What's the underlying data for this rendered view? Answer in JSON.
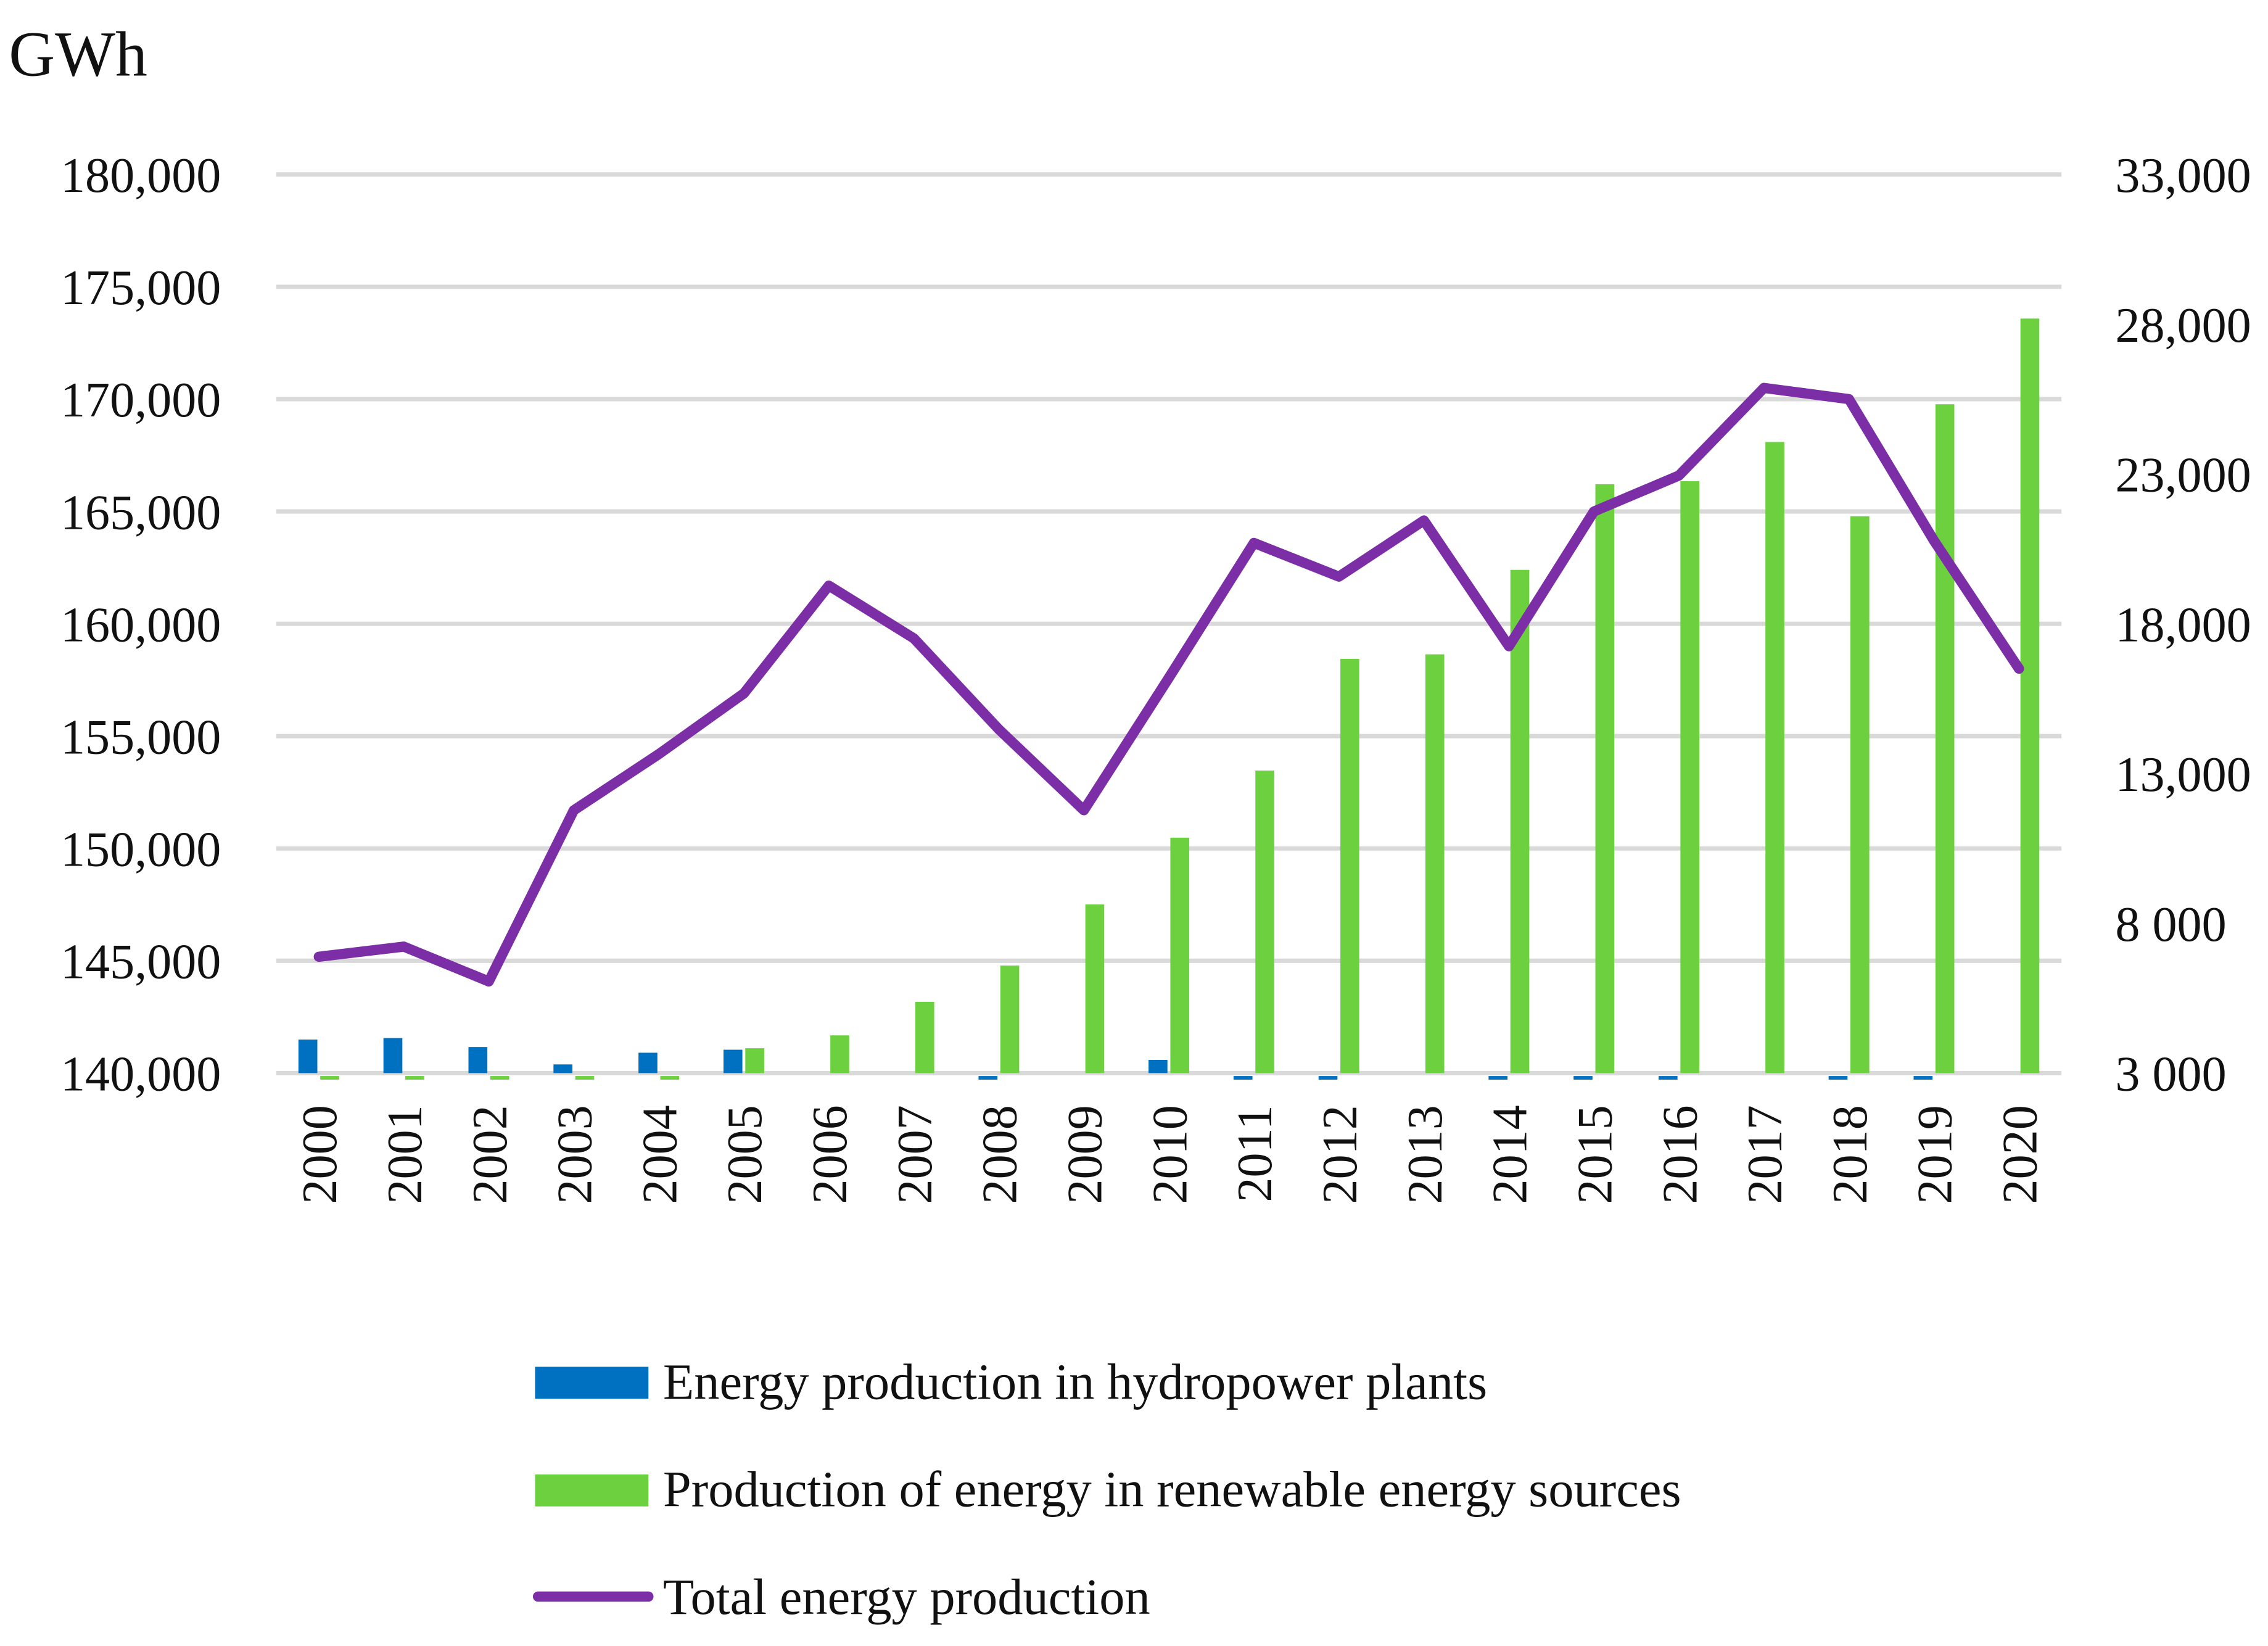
{
  "chart_data": {
    "type": "bar+line",
    "unit_label": "GWh",
    "categories": [
      "2000",
      "2001",
      "2002",
      "2003",
      "2004",
      "2005",
      "2006",
      "2007",
      "2008",
      "2009",
      "2010",
      "2011",
      "2012",
      "2013",
      "2014",
      "2015",
      "2016",
      "2017",
      "2018",
      "2019",
      "2020"
    ],
    "left_axis": {
      "min": 140000,
      "max": 180000,
      "step": 5000,
      "tick_labels": [
        "140,000",
        "145,000",
        "150,000",
        "155,000",
        "160,000",
        "165,000",
        "170,000",
        "175,000",
        "180,000"
      ]
    },
    "right_axis": {
      "min": 3000,
      "max": 33000,
      "step": 5000,
      "tick_labels": [
        "3 000",
        "8 000",
        "13,000",
        "18,000",
        "23,000",
        "28,000",
        "33,000"
      ]
    },
    "grid": true,
    "legend_position": "bottom",
    "series": [
      {
        "name": "Energy production in hydropower plants",
        "type": "bar",
        "axis": "right",
        "color": "#0070c0",
        "values": [
          4120,
          4170,
          3870,
          3290,
          3680,
          3780,
          3000,
          3000,
          2900,
          3000,
          3440,
          2900,
          2900,
          3000,
          2900,
          2900,
          2900,
          3000,
          2900,
          2900,
          3000
        ]
      },
      {
        "name": "Production of energy in renewable energy sources",
        "type": "bar",
        "axis": "right",
        "color": "#6dd13f",
        "values": [
          2900,
          2900,
          2900,
          2900,
          2900,
          3830,
          4260,
          5380,
          6590,
          8630,
          10860,
          13100,
          16830,
          16980,
          19800,
          22660,
          22760,
          24070,
          21590,
          25330,
          28190
        ]
      },
      {
        "name": "Total energy production",
        "type": "line",
        "axis": "left",
        "color": "#7b2ea5",
        "values": [
          145180,
          145630,
          144080,
          151700,
          154200,
          156900,
          161700,
          159350,
          155300,
          151700,
          157600,
          163600,
          162100,
          164600,
          159000,
          165000,
          166600,
          170500,
          170000,
          163700,
          158000
        ]
      }
    ]
  }
}
